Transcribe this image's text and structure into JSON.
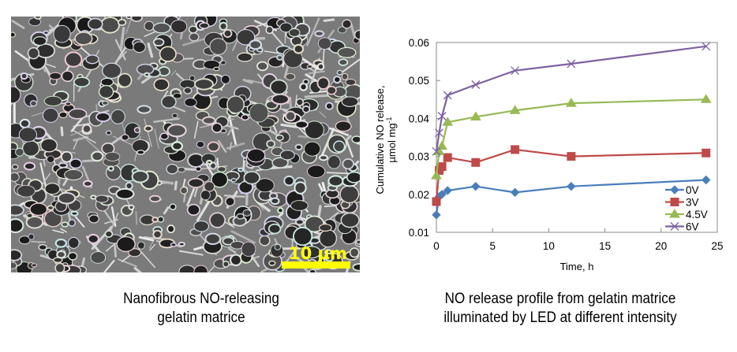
{
  "left_panel": {
    "image_description": "SEM micrograph of porous nanofibrous gelatin",
    "scale_bar_label": "10 µm",
    "scale_bar_color": "#ffff00",
    "caption_line1": "Nanofibrous NO-releasing",
    "caption_line2": "gelatin matrice"
  },
  "right_panel": {
    "caption_line1": "NO release profile from gelatin matrice",
    "caption_line2": "illuminated by LED at different intensity"
  },
  "chart_data": {
    "type": "line",
    "title": "",
    "xlabel": "Time, h",
    "ylabel_line1": "Cumulative NO release,",
    "ylabel_line2": "µmol mg",
    "ylabel_superscript": "-1",
    "xlim": [
      0,
      25
    ],
    "ylim": [
      0.01,
      0.06
    ],
    "xticks": [
      0,
      5,
      10,
      15,
      20,
      25
    ],
    "yticks": [
      0.01,
      0.02,
      0.03,
      0.04,
      0.05,
      0.06
    ],
    "xtick_labels": [
      "0",
      "5",
      "10",
      "15",
      "20",
      "25"
    ],
    "ytick_labels": [
      "0.01",
      "0.02",
      "0.03",
      "0.04",
      "0.05",
      "0.06"
    ],
    "grid": false,
    "legend_position": "bottom-right",
    "x": [
      0,
      0.25,
      0.5,
      1,
      3.5,
      7,
      12,
      24
    ],
    "series": [
      {
        "name": "0V",
        "color": "#4a7ebb",
        "marker": "diamond",
        "values": [
          0.0146,
          0.0194,
          0.02,
          0.021,
          0.0221,
          0.0205,
          0.0221,
          0.0238
        ]
      },
      {
        "name": "3V",
        "color": "#be4b48",
        "marker": "square",
        "values": [
          0.0181,
          0.0263,
          0.0273,
          0.0297,
          0.0284,
          0.0318,
          0.03,
          0.0309
        ]
      },
      {
        "name": "4.5V",
        "color": "#98b954",
        "marker": "triangle",
        "values": [
          0.0249,
          0.0313,
          0.0327,
          0.039,
          0.0404,
          0.0421,
          0.044,
          0.045
        ]
      },
      {
        "name": "6V",
        "color": "#7d60a0",
        "marker": "x",
        "values": [
          0.0313,
          0.0362,
          0.0406,
          0.0461,
          0.0489,
          0.0526,
          0.0544,
          0.059
        ]
      }
    ]
  }
}
